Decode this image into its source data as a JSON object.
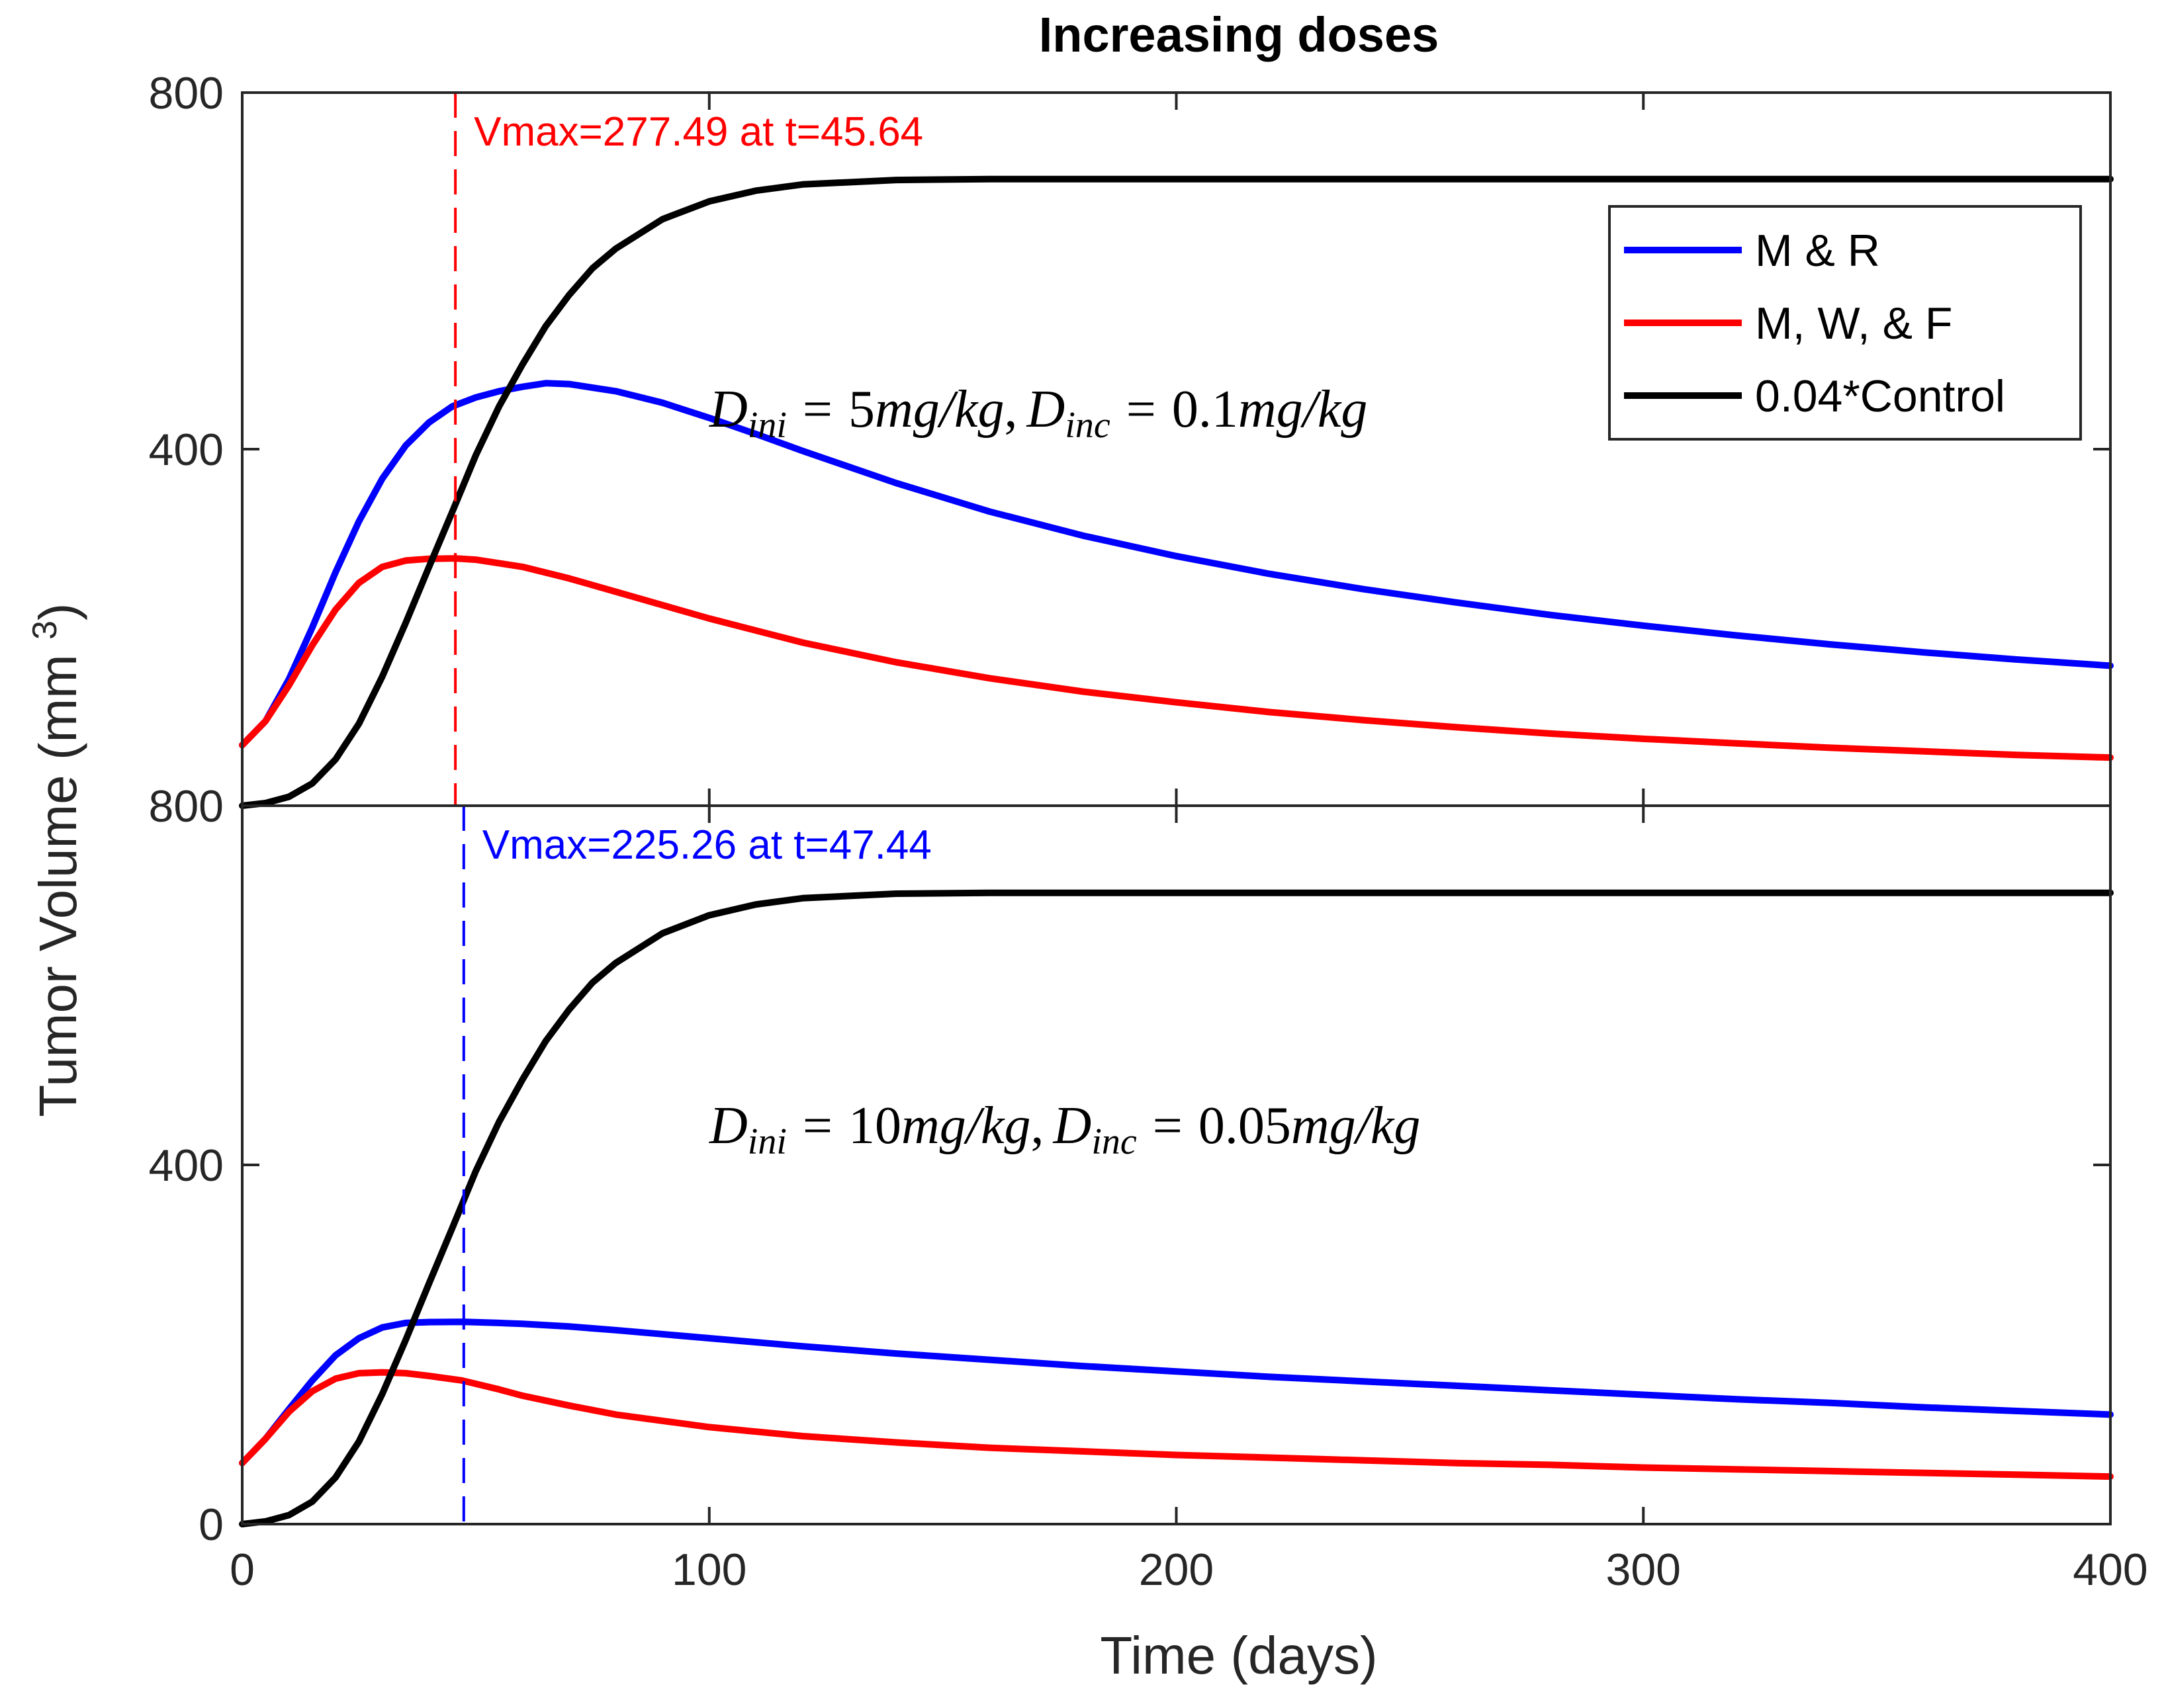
{
  "chart_data": [
    {
      "type": "line",
      "title": "Increasing doses",
      "xlabel": "Time (days)",
      "ylabel": "Tumor Volume (mm³)",
      "xlim": [
        0,
        400
      ],
      "ylim": [
        0,
        800
      ],
      "yticks": [
        {
          "value": 400,
          "label": "400"
        },
        {
          "value": 800,
          "label": "800"
        }
      ],
      "grid": false,
      "legend": {
        "position": "top-right",
        "entries": [
          "M & R",
          "M, W, & F",
          "0.04*Control"
        ]
      },
      "colors": {
        "blue": "#0000ff",
        "red": "#ff0000",
        "black": "#000000"
      },
      "annotation": {
        "text": "Vmax=277.49 at t=45.64",
        "x": 45.64,
        "y": 277.49,
        "color": "#ff0000"
      },
      "formula": {
        "d": "D",
        "sub_ini": "ini",
        "sub_inc": "inc",
        "eq": "=",
        "val_ini": "5",
        "unit_ini": "mg/kg",
        "comma": ",",
        "val_inc": "0.1",
        "unit_inc": "mg/kg"
      },
      "series": [
        {
          "name": "M & R",
          "color": "#0000ff",
          "x": [
            0,
            5,
            10,
            15,
            20,
            25,
            30,
            35,
            40,
            45,
            50,
            55,
            60,
            65,
            70,
            80,
            90,
            100,
            110,
            120,
            140,
            160,
            180,
            200,
            220,
            240,
            260,
            280,
            300,
            320,
            340,
            360,
            380,
            400
          ],
          "y": [
            68,
            95,
            142,
            200,
            262,
            319,
            367,
            404,
            430,
            448,
            458,
            465,
            470,
            474,
            473,
            465,
            452,
            435,
            417,
            398,
            362,
            330,
            303,
            280,
            260,
            243,
            228,
            214,
            202,
            191,
            181,
            172,
            164,
            157
          ]
        },
        {
          "name": "M, W, & F",
          "color": "#ff0000",
          "x": [
            0,
            5,
            10,
            15,
            20,
            25,
            30,
            35,
            40,
            45.64,
            50,
            60,
            70,
            80,
            100,
            120,
            140,
            160,
            180,
            200,
            220,
            240,
            260,
            280,
            300,
            320,
            340,
            360,
            380,
            400
          ],
          "y": [
            68,
            95,
            135,
            180,
            220,
            250,
            268,
            275,
            277,
            277.49,
            276,
            268,
            255,
            240,
            210,
            183,
            161,
            143,
            128,
            116,
            105,
            96,
            88,
            81,
            75,
            70,
            65,
            61,
            57,
            54
          ]
        },
        {
          "name": "0.04*Control",
          "color": "#000000",
          "x": [
            0,
            5,
            10,
            15,
            20,
            25,
            30,
            35,
            40,
            45,
            50,
            55,
            60,
            65,
            70,
            75,
            80,
            90,
            100,
            110,
            120,
            140,
            160,
            180,
            200,
            250,
            300,
            350,
            400
          ],
          "y": [
            0,
            3,
            10,
            25,
            52,
            92,
            145,
            205,
            268,
            330,
            393,
            448,
            495,
            538,
            573,
            603,
            625,
            658,
            678,
            690,
            697,
            702,
            703,
            703,
            703,
            703,
            703,
            703,
            703
          ]
        }
      ]
    },
    {
      "type": "line",
      "title": "",
      "xlabel": "Time (days)",
      "ylabel": "Tumor Volume (mm³)",
      "xlim": [
        0,
        400
      ],
      "ylim": [
        0,
        800
      ],
      "yticks": [
        {
          "value": 0,
          "label": "0"
        },
        {
          "value": 400,
          "label": "400"
        },
        {
          "value": 800,
          "label": "800"
        }
      ],
      "xticks": [
        {
          "value": 0,
          "label": "0"
        },
        {
          "value": 100,
          "label": "100"
        },
        {
          "value": 200,
          "label": "200"
        },
        {
          "value": 300,
          "label": "300"
        },
        {
          "value": 400,
          "label": "400"
        }
      ],
      "grid": false,
      "annotation": {
        "text": "Vmax=225.26 at t=47.44",
        "x": 47.44,
        "y": 225.26,
        "color": "#0000ff"
      },
      "formula": {
        "d": "D",
        "sub_ini": "ini",
        "sub_inc": "inc",
        "eq": "=",
        "val_ini": "10",
        "unit_ini": "mg/kg",
        "comma": ",",
        "val_inc": "0.05",
        "unit_inc": "mg/kg"
      },
      "series": [
        {
          "name": "M & R",
          "color": "#0000ff",
          "x": [
            0,
            5,
            10,
            15,
            20,
            25,
            30,
            35,
            40,
            47.44,
            55,
            60,
            70,
            80,
            100,
            120,
            140,
            160,
            180,
            200,
            220,
            240,
            260,
            280,
            300,
            320,
            340,
            360,
            380,
            400
          ],
          "y": [
            68,
            95,
            128,
            160,
            188,
            207,
            219,
            224,
            225,
            225.26,
            224,
            223,
            220,
            216,
            207,
            198,
            190,
            183,
            176,
            170,
            164,
            159,
            154,
            149,
            144,
            139,
            135,
            130,
            126,
            122
          ]
        },
        {
          "name": "M, W, & F",
          "color": "#ff0000",
          "x": [
            0,
            5,
            10,
            15,
            20,
            25,
            30,
            35,
            40,
            47,
            55,
            60,
            70,
            80,
            100,
            120,
            140,
            160,
            180,
            200,
            220,
            240,
            260,
            280,
            300,
            320,
            340,
            360,
            380,
            400
          ],
          "y": [
            68,
            95,
            125,
            148,
            162,
            168,
            169,
            168,
            165,
            160,
            150,
            143,
            132,
            122,
            108,
            98,
            91,
            85,
            81,
            77,
            74,
            71,
            68,
            66,
            63,
            61,
            59,
            57,
            55,
            53
          ]
        },
        {
          "name": "0.04*Control",
          "color": "#000000",
          "x": [
            0,
            5,
            10,
            15,
            20,
            25,
            30,
            35,
            40,
            45,
            50,
            55,
            60,
            65,
            70,
            75,
            80,
            90,
            100,
            110,
            120,
            140,
            160,
            180,
            200,
            250,
            300,
            350,
            400
          ],
          "y": [
            0,
            3,
            10,
            25,
            52,
            92,
            145,
            205,
            268,
            330,
            393,
            448,
            495,
            538,
            573,
            603,
            625,
            658,
            678,
            690,
            697,
            702,
            703,
            703,
            703,
            703,
            703,
            703,
            703
          ]
        }
      ]
    }
  ]
}
